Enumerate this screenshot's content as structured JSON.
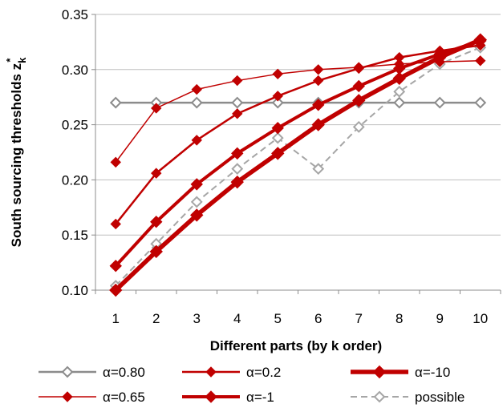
{
  "chart_data": {
    "type": "line",
    "title": "",
    "xlabel": "Different parts (by k order)",
    "ylabel_main": "South sourcing thresholds z",
    "ylabel_sub": "k",
    "ylabel_sup": "*",
    "x": [
      1,
      2,
      3,
      4,
      5,
      6,
      7,
      8,
      9,
      10
    ],
    "x_tick_labels": [
      "1",
      "2",
      "3",
      "4",
      "5",
      "6",
      "7",
      "8",
      "9",
      "10"
    ],
    "ylim": [
      0.1,
      0.35
    ],
    "y_ticks": [
      0.1,
      0.15,
      0.2,
      0.25,
      0.3,
      0.35
    ],
    "y_tick_labels": [
      "0.10",
      "0.15",
      "0.20",
      "0.25",
      "0.30",
      "0.35"
    ],
    "grid": "horizontal",
    "legend_position": "bottom",
    "series": [
      {
        "name": "α=0.80",
        "color": "#8c8c8c",
        "width": 2.5,
        "dash": "",
        "marker": "diamond-open",
        "values": [
          0.27,
          0.27,
          0.27,
          0.27,
          0.27,
          0.27,
          0.27,
          0.27,
          0.27,
          0.27
        ]
      },
      {
        "name": "α=0.65",
        "color": "#c00000",
        "width": 1.5,
        "dash": "",
        "marker": "diamond",
        "values": [
          0.216,
          0.265,
          0.282,
          0.29,
          0.296,
          0.3,
          0.302,
          0.305,
          0.307,
          0.308
        ]
      },
      {
        "name": "α=0.2",
        "color": "#c00000",
        "width": 2.5,
        "dash": "",
        "marker": "diamond",
        "values": [
          0.16,
          0.206,
          0.236,
          0.26,
          0.276,
          0.29,
          0.301,
          0.311,
          0.317,
          0.322
        ]
      },
      {
        "name": "α=-1",
        "color": "#c00000",
        "width": 4,
        "dash": "",
        "marker": "diamond",
        "values": [
          0.122,
          0.162,
          0.196,
          0.224,
          0.247,
          0.268,
          0.285,
          0.301,
          0.314,
          0.326
        ]
      },
      {
        "name": "α=-10",
        "color": "#c00000",
        "width": 5.5,
        "dash": "",
        "marker": "diamond",
        "values": [
          0.1,
          0.135,
          0.168,
          0.198,
          0.224,
          0.25,
          0.272,
          0.292,
          0.311,
          0.327
        ]
      },
      {
        "name": "possible",
        "color": "#a6a6a6",
        "width": 2,
        "dash": "8,5",
        "marker": "diamond-open",
        "values": [
          0.104,
          0.142,
          0.18,
          0.21,
          0.238,
          0.21,
          0.248,
          0.28,
          0.305,
          0.32
        ]
      }
    ],
    "legend": [
      {
        "series": 0,
        "row": 0,
        "col": 0
      },
      {
        "series": 2,
        "row": 0,
        "col": 1
      },
      {
        "series": 4,
        "row": 0,
        "col": 2
      },
      {
        "series": 1,
        "row": 1,
        "col": 0
      },
      {
        "series": 3,
        "row": 1,
        "col": 1
      },
      {
        "series": 5,
        "row": 1,
        "col": 2
      }
    ]
  }
}
